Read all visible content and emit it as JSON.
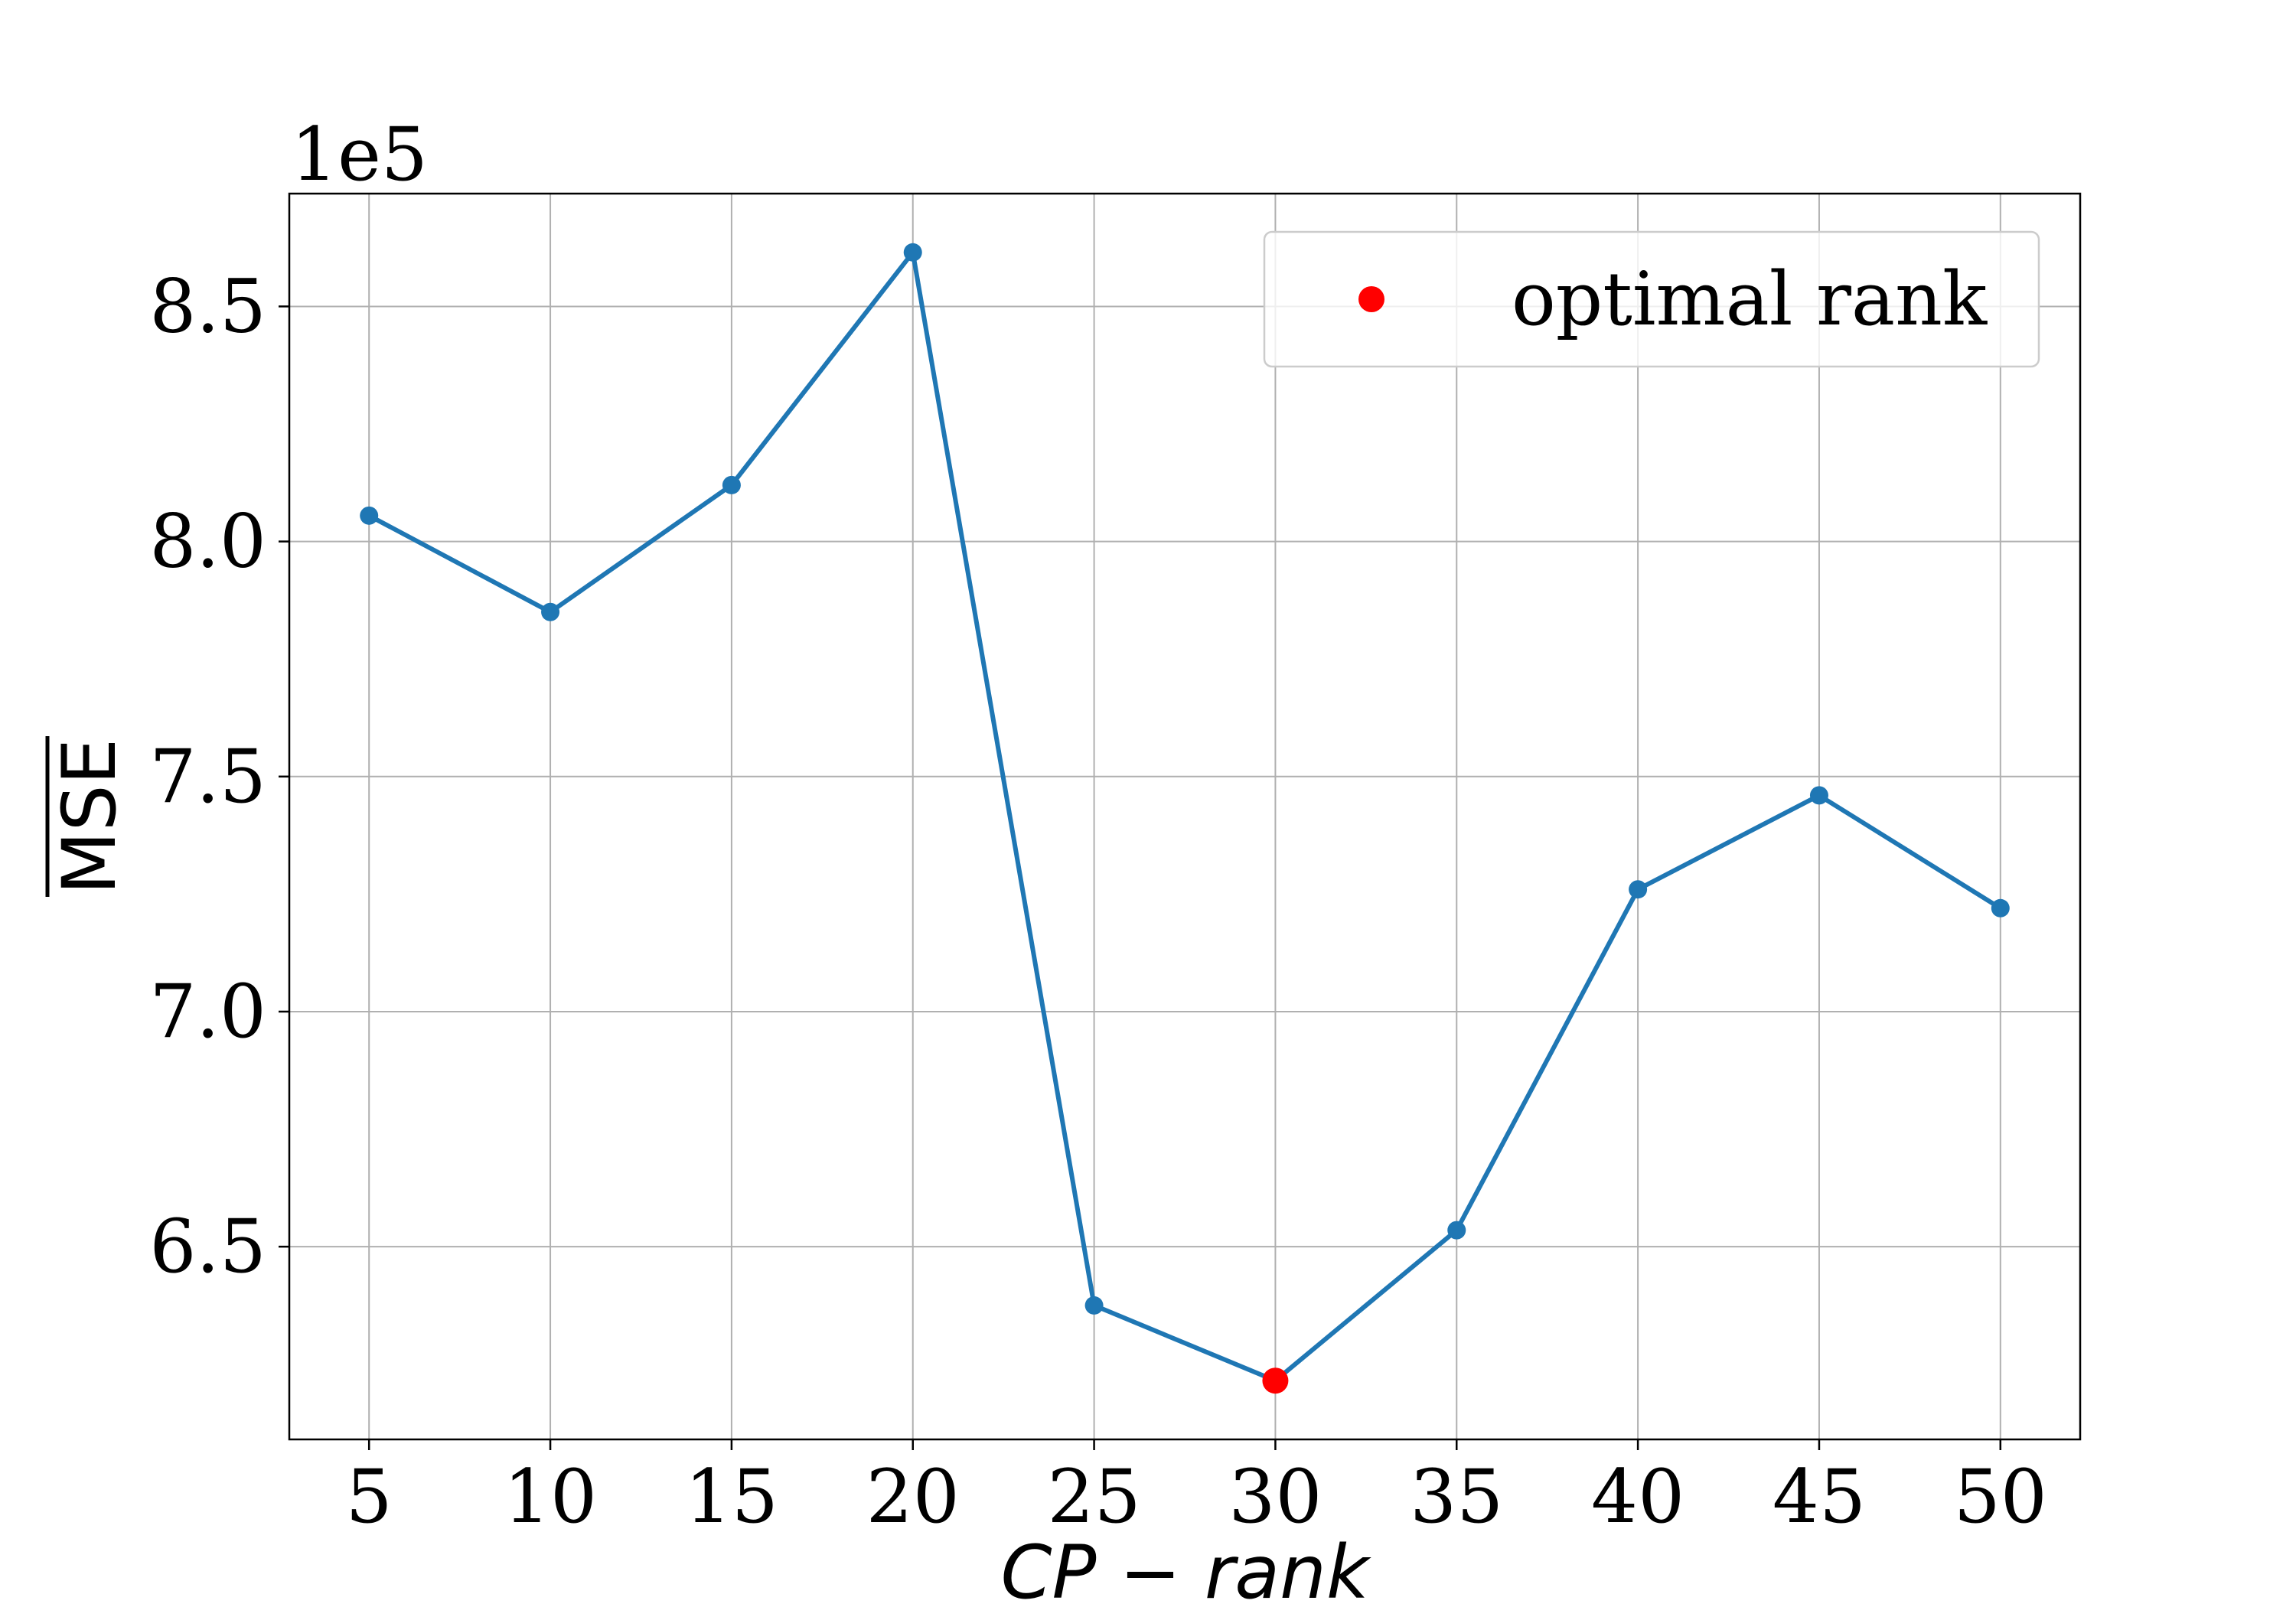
{
  "chart_data": {
    "type": "line",
    "x": [
      5,
      10,
      15,
      20,
      25,
      30,
      35,
      40,
      45,
      50
    ],
    "series": [
      {
        "values": [
          805500,
          785000,
          812000,
          861500,
          637500,
          621500,
          653500,
          726000,
          746000,
          722000
        ],
        "color": "#1f77b4"
      }
    ],
    "highlight": {
      "name": "optimal rank",
      "x": 30,
      "y": 621500,
      "color": "#ff0000"
    },
    "xlabel": "CP−rank",
    "ylabel": "MSE",
    "ylabel_overline": true,
    "offset_text": "1e5",
    "xlim": [
      2.8,
      52.2
    ],
    "ylim": [
      609000,
      874000
    ],
    "xticks": [
      5,
      10,
      15,
      20,
      25,
      30,
      35,
      40,
      45,
      50
    ],
    "xtick_labels": [
      "5",
      "10",
      "15",
      "20",
      "25",
      "30",
      "35",
      "40",
      "45",
      "50"
    ],
    "yticks": [
      650000,
      700000,
      750000,
      800000,
      850000
    ],
    "ytick_labels": [
      "6.5",
      "7.0",
      "7.5",
      "8.0",
      "8.5"
    ],
    "grid": true,
    "legend": {
      "placement": "top-right",
      "entries": [
        "optimal rank"
      ]
    }
  }
}
